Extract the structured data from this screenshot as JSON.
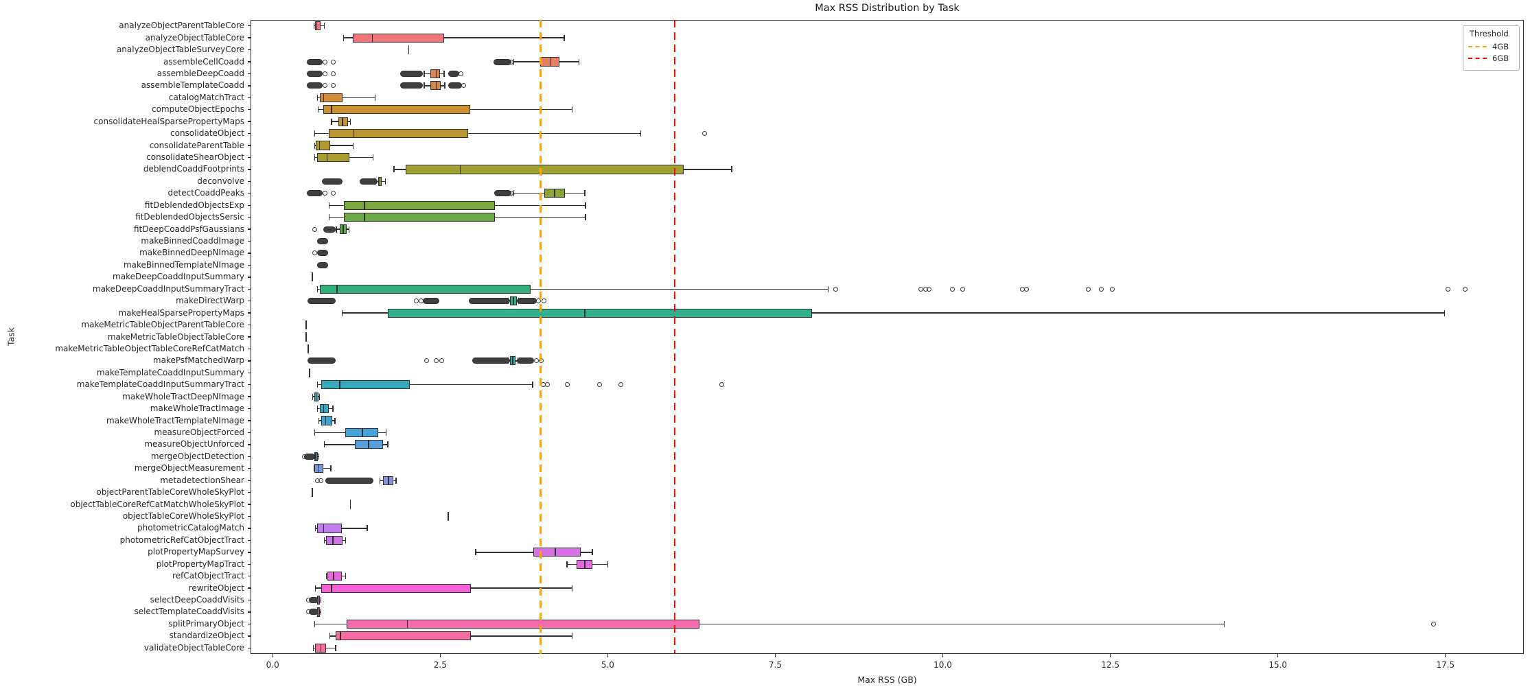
{
  "header": {
    "title": "Max RSS Distribution by Task"
  },
  "axes": {
    "xlabel": "Max RSS (GB)",
    "ylabel": "Task",
    "x_tick_labels": [
      "0.0",
      "2.5",
      "5.0",
      "7.5",
      "10.0",
      "12.5",
      "15.0",
      "17.5"
    ],
    "x_tick_values": [
      0,
      2.5,
      5,
      7.5,
      10,
      12.5,
      15,
      17.5
    ],
    "xlim": [
      -0.33,
      18.67
    ],
    "grid": false
  },
  "legend": {
    "title": "Threshold",
    "position": "upper right"
  },
  "style": {
    "palette_anchors": [
      "#f77189",
      "#ce9032",
      "#97a431",
      "#32b166",
      "#36ada4",
      "#39a7d0",
      "#a48cf4",
      "#f561dd"
    ],
    "spine_color": "#2b2b2b",
    "flier_color": "#3a3a3a",
    "background": "#ffffff"
  },
  "chart_data": {
    "type": "boxplot",
    "orientation": "horizontal",
    "title": "Max RSS Distribution by Task",
    "xlabel": "Max RSS (GB)",
    "ylabel": "Task",
    "units": "GB",
    "thresholds": [
      {
        "label": "4GB",
        "value": 4,
        "color": "#ffa500",
        "style": "dashed"
      },
      {
        "label": "6GB",
        "value": 6,
        "color": "#ff0000",
        "style": "dashed"
      }
    ],
    "tasks": [
      {
        "name": "analyzeObjectParentTableCore",
        "box": [
          0.63,
          0.66,
          0.71
        ],
        "whiskers": [
          0.62,
          0.77
        ]
      },
      {
        "name": "analyzeObjectTableCore",
        "box": [
          1.2,
          1.49,
          2.56
        ],
        "whiskers": [
          1.06,
          4.35
        ]
      },
      {
        "name": "analyzeObjectTableSurveyCore",
        "point": 2.03
      },
      {
        "name": "assembleCellCoadd",
        "box": [
          3.99,
          4.14,
          4.28
        ],
        "whiskers": [
          3.6,
          4.57
        ],
        "clusters": [
          [
            0.55,
            0.7
          ],
          [
            3.34,
            3.52
          ]
        ],
        "fliers": [
          0.78,
          0.9,
          3.56
        ]
      },
      {
        "name": "assembleDeepCoadd",
        "box": [
          2.35,
          2.44,
          2.5
        ],
        "whiskers": [
          2.26,
          2.56
        ],
        "clusters": [
          [
            0.55,
            0.7
          ],
          [
            1.94,
            2.2
          ],
          [
            2.66,
            2.74
          ]
        ],
        "fliers": [
          0.78,
          0.9,
          2.81
        ]
      },
      {
        "name": "assembleTemplateCoadd",
        "box": [
          2.35,
          2.44,
          2.51
        ],
        "whiskers": [
          2.26,
          2.57
        ],
        "clusters": [
          [
            0.55,
            0.7
          ],
          [
            1.94,
            2.2
          ],
          [
            2.66,
            2.78
          ]
        ],
        "fliers": [
          0.78,
          0.9,
          2.85
        ]
      },
      {
        "name": "catalogMatchTract",
        "box": [
          0.7,
          0.76,
          1.04
        ],
        "whiskers": [
          0.67,
          1.53
        ]
      },
      {
        "name": "computeObjectEpochs",
        "box": [
          0.76,
          0.88,
          2.95
        ],
        "whiskers": [
          0.68,
          4.47
        ]
      },
      {
        "name": "consolidateHealSparsePropertyMaps",
        "box": [
          0.98,
          1.04,
          1.12
        ],
        "whiskers": [
          0.88,
          1.16
        ]
      },
      {
        "name": "consolidateObject",
        "box": [
          0.84,
          1.21,
          2.92
        ],
        "whiskers": [
          0.63,
          5.49
        ],
        "fliers": [
          6.45
        ]
      },
      {
        "name": "consolidateParentTable",
        "box": [
          0.64,
          0.7,
          0.86
        ],
        "whiskers": [
          0.63,
          1.2
        ]
      },
      {
        "name": "consolidateShearObject",
        "box": [
          0.66,
          0.81,
          1.15
        ],
        "whiskers": [
          0.63,
          1.5
        ]
      },
      {
        "name": "deblendCoaddFootprints",
        "box": [
          1.98,
          2.8,
          6.13
        ],
        "whiskers": [
          1.81,
          6.85
        ]
      },
      {
        "name": "deconvolve",
        "box": [
          1.58,
          1.6,
          1.63
        ],
        "whiskers": [
          1.54,
          1.68
        ],
        "clusters": [
          [
            0.78,
            1.0
          ],
          [
            1.34,
            1.52
          ]
        ]
      },
      {
        "name": "detectCoaddPeaks",
        "box": [
          4.05,
          4.21,
          4.36
        ],
        "whiskers": [
          3.6,
          4.66
        ],
        "clusters": [
          [
            0.55,
            0.7
          ],
          [
            3.35,
            3.52
          ]
        ],
        "fliers": [
          0.78,
          0.9,
          3.56
        ]
      },
      {
        "name": "fitDeblendedObjectsExp",
        "box": [
          1.06,
          1.37,
          3.32
        ],
        "whiskers": [
          0.84,
          4.67
        ]
      },
      {
        "name": "fitDeblendedObjectsSersic",
        "box": [
          1.06,
          1.37,
          3.32
        ],
        "whiskers": [
          0.84,
          4.67
        ]
      },
      {
        "name": "fitDeepCoaddPsfGaussians",
        "box": [
          1.0,
          1.05,
          1.1
        ],
        "whiskers": [
          0.95,
          1.14
        ],
        "clusters": [
          [
            0.8,
            0.9
          ]
        ],
        "fliers": [
          0.63
        ]
      },
      {
        "name": "makeBinnedCoaddImage",
        "clusters": [
          [
            0.7,
            0.79
          ]
        ]
      },
      {
        "name": "makeBinnedDeepNImage",
        "clusters": [
          [
            0.7,
            0.79
          ]
        ],
        "fliers": [
          0.63
        ]
      },
      {
        "name": "makeBinnedTemplateNImage",
        "clusters": [
          [
            0.7,
            0.79
          ]
        ]
      },
      {
        "name": "makeDeepCoaddInputSummary",
        "point": 0.59
      },
      {
        "name": "makeDeepCoaddInputSummaryTract",
        "box": [
          0.7,
          0.96,
          3.85
        ],
        "whiskers": [
          0.67,
          8.29
        ],
        "fliers": [
          8.4,
          9.67,
          9.74,
          9.79,
          10.14,
          10.3,
          11.19,
          11.25,
          12.17,
          12.37,
          12.53,
          17.54,
          17.79
        ]
      },
      {
        "name": "makeDirectWarp",
        "box": [
          3.54,
          3.59,
          3.64
        ],
        "whiskers": [
          3.51,
          3.67
        ],
        "clusters": [
          [
            0.56,
            0.9
          ],
          [
            2.28,
            2.45
          ],
          [
            2.97,
            3.5
          ],
          [
            3.69,
            3.9
          ]
        ],
        "fliers": [
          2.14,
          2.22,
          3.97,
          4.05
        ]
      },
      {
        "name": "makeHealSparsePropertyMaps",
        "box": [
          1.72,
          4.66,
          8.05
        ],
        "whiskers": [
          1.04,
          17.49
        ]
      },
      {
        "name": "makeMetricTableObjectParentTableCore",
        "point": 0.5
      },
      {
        "name": "makeMetricTableObjectTableCore",
        "point": 0.5
      },
      {
        "name": "makeMetricTableObjectTableCoreRefCatMatch",
        "point": 0.53
      },
      {
        "name": "makePsfMatchedWarp",
        "box": [
          3.54,
          3.58,
          3.62
        ],
        "whiskers": [
          3.51,
          3.66
        ],
        "clusters": [
          [
            0.56,
            0.9
          ],
          [
            3.02,
            3.5
          ],
          [
            3.68,
            3.86
          ]
        ],
        "fliers": [
          2.3,
          2.44,
          2.52,
          3.94,
          4.01
        ]
      },
      {
        "name": "makeTemplateCoaddInputSummary",
        "point": 0.55
      },
      {
        "name": "makeTemplateCoaddInputSummaryTract",
        "box": [
          0.72,
          1.0,
          2.05
        ],
        "whiskers": [
          0.67,
          3.88
        ],
        "fliers": [
          4.04,
          4.1,
          4.4,
          4.88,
          5.2,
          6.7
        ]
      },
      {
        "name": "makeWholeTractDeepNImage",
        "box": [
          0.62,
          0.65,
          0.68
        ],
        "whiskers": [
          0.6,
          0.7
        ]
      },
      {
        "name": "makeWholeTractImage",
        "box": [
          0.7,
          0.76,
          0.84
        ],
        "whiskers": [
          0.67,
          0.9
        ]
      },
      {
        "name": "makeWholeTractTemplateNImage",
        "box": [
          0.72,
          0.79,
          0.89
        ],
        "whiskers": [
          0.69,
          0.93
        ]
      },
      {
        "name": "measureObjectForced",
        "box": [
          1.08,
          1.34,
          1.58
        ],
        "whiskers": [
          0.63,
          1.69
        ]
      },
      {
        "name": "measureObjectUnforced",
        "box": [
          1.23,
          1.43,
          1.65
        ],
        "whiskers": [
          0.77,
          1.72
        ]
      },
      {
        "name": "mergeObjectDetection",
        "box": [
          0.62,
          0.645,
          0.67
        ],
        "whiskers": [
          0.6,
          0.69
        ],
        "clusters": [
          [
            0.51,
            0.59
          ]
        ],
        "fliers": [
          0.47
        ]
      },
      {
        "name": "mergeObjectMeasurement",
        "box": [
          0.62,
          0.68,
          0.76
        ],
        "whiskers": [
          0.62,
          0.87
        ]
      },
      {
        "name": "metadetectionShear",
        "box": [
          1.65,
          1.73,
          1.8
        ],
        "whiskers": [
          1.6,
          1.84
        ],
        "clusters": [
          [
            0.83,
            1.46
          ]
        ],
        "fliers": [
          0.67,
          0.72
        ]
      },
      {
        "name": "objectParentTableCoreWholeSkyPlot",
        "point": 0.59
      },
      {
        "name": "objectTableCoreRefCatMatchWholeSkyPlot",
        "point": 1.16
      },
      {
        "name": "objectTableCoreWholeSkyPlot",
        "point": 2.62
      },
      {
        "name": "photometricCatalogMatch",
        "box": [
          0.66,
          0.76,
          1.03
        ],
        "whiskers": [
          0.64,
          1.41
        ]
      },
      {
        "name": "photometricRefCatObjectTract",
        "box": [
          0.8,
          0.9,
          1.04
        ],
        "whiskers": [
          0.77,
          1.09
        ]
      },
      {
        "name": "plotPropertyMapSurvey",
        "box": [
          3.89,
          4.22,
          4.6
        ],
        "whiskers": [
          3.03,
          4.77
        ]
      },
      {
        "name": "plotPropertyMapTract",
        "box": [
          4.54,
          4.66,
          4.77
        ],
        "whiskers": [
          4.39,
          5.0
        ]
      },
      {
        "name": "refCatObjectTract",
        "box": [
          0.82,
          0.91,
          1.03
        ],
        "whiskers": [
          0.8,
          1.09
        ]
      },
      {
        "name": "rewriteObject",
        "box": [
          0.73,
          0.88,
          2.96
        ],
        "whiskers": [
          0.64,
          4.47
        ]
      },
      {
        "name": "selectDeepCoaddVisits",
        "box": [
          0.66,
          0.68,
          0.7
        ],
        "whiskers": [
          0.64,
          0.72
        ],
        "clusters": [
          [
            0.58,
            0.64
          ]
        ],
        "fliers": [
          0.54
        ]
      },
      {
        "name": "selectTemplateCoaddVisits",
        "box": [
          0.66,
          0.68,
          0.7
        ],
        "whiskers": [
          0.64,
          0.72
        ],
        "clusters": [
          [
            0.58,
            0.64
          ]
        ],
        "fliers": [
          0.54
        ]
      },
      {
        "name": "splitPrimaryObject",
        "box": [
          1.1,
          2.01,
          6.37
        ],
        "whiskers": [
          0.63,
          14.2
        ],
        "fliers": [
          17.32
        ]
      },
      {
        "name": "standardizeObject",
        "box": [
          0.94,
          1.01,
          2.96
        ],
        "whiskers": [
          0.85,
          4.47
        ]
      },
      {
        "name": "validateObjectTableCore",
        "box": [
          0.63,
          0.72,
          0.8
        ],
        "whiskers": [
          0.61,
          0.94
        ]
      }
    ]
  }
}
